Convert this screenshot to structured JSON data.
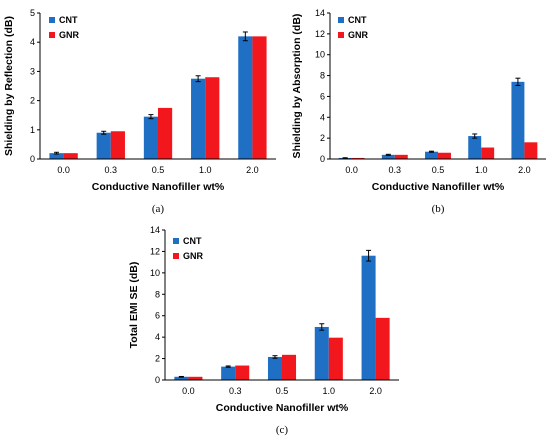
{
  "colors": {
    "CNT": "#1F6FC5",
    "GNR": "#F2171C",
    "axis": "#000000",
    "errorbar": "#000000"
  },
  "chart_data": [
    {
      "type": "bar",
      "panel_label": "(a)",
      "categories": [
        "0.0",
        "0.3",
        "0.5",
        "1.0",
        "2.0"
      ],
      "xlabel": "Conductive Nanofiller wt%",
      "ylabel": "Shielding by Reflection (dB)",
      "ylim": [
        0,
        5
      ],
      "yticks": [
        0,
        1,
        2,
        3,
        4,
        5
      ],
      "grid": false,
      "legend_position": "top-left",
      "series": [
        {
          "name": "CNT",
          "values": [
            0.2,
            0.9,
            1.45,
            2.75,
            4.2
          ],
          "errors": [
            0.03,
            0.05,
            0.07,
            0.1,
            0.15
          ]
        },
        {
          "name": "GNR",
          "values": [
            0.2,
            0.95,
            1.75,
            2.8,
            4.2
          ],
          "errors": [
            0,
            0,
            0,
            0,
            0
          ]
        }
      ]
    },
    {
      "type": "bar",
      "panel_label": "(b)",
      "categories": [
        "0.0",
        "0.3",
        "0.5",
        "1.0",
        "2.0"
      ],
      "xlabel": "Conductive Nanofiller wt%",
      "ylabel": "Shielding by Absorption (dB)",
      "ylim": [
        0,
        14
      ],
      "yticks": [
        0,
        2,
        4,
        6,
        8,
        10,
        12,
        14
      ],
      "grid": false,
      "legend_position": "top-left",
      "series": [
        {
          "name": "CNT",
          "values": [
            0.1,
            0.4,
            0.7,
            2.2,
            7.4
          ],
          "errors": [
            0.02,
            0.05,
            0.05,
            0.2,
            0.35
          ]
        },
        {
          "name": "GNR",
          "values": [
            0.1,
            0.4,
            0.6,
            1.1,
            1.6
          ],
          "errors": [
            0,
            0,
            0,
            0,
            0
          ]
        }
      ]
    },
    {
      "type": "bar",
      "panel_label": "(c)",
      "categories": [
        "0.0",
        "0.3",
        "0.5",
        "1.0",
        "2.0"
      ],
      "xlabel": "Conductive Nanofiller wt%",
      "ylabel": "Total EMI SE (dB)",
      "ylim": [
        0,
        14
      ],
      "yticks": [
        0,
        2,
        4,
        6,
        8,
        10,
        12,
        14
      ],
      "grid": false,
      "legend_position": "top-left",
      "series": [
        {
          "name": "CNT",
          "values": [
            0.3,
            1.25,
            2.15,
            4.95,
            11.6
          ],
          "errors": [
            0.03,
            0.06,
            0.12,
            0.3,
            0.5
          ]
        },
        {
          "name": "GNR",
          "values": [
            0.3,
            1.35,
            2.35,
            3.95,
            5.8
          ],
          "errors": [
            0,
            0,
            0,
            0,
            0
          ]
        }
      ]
    }
  ]
}
